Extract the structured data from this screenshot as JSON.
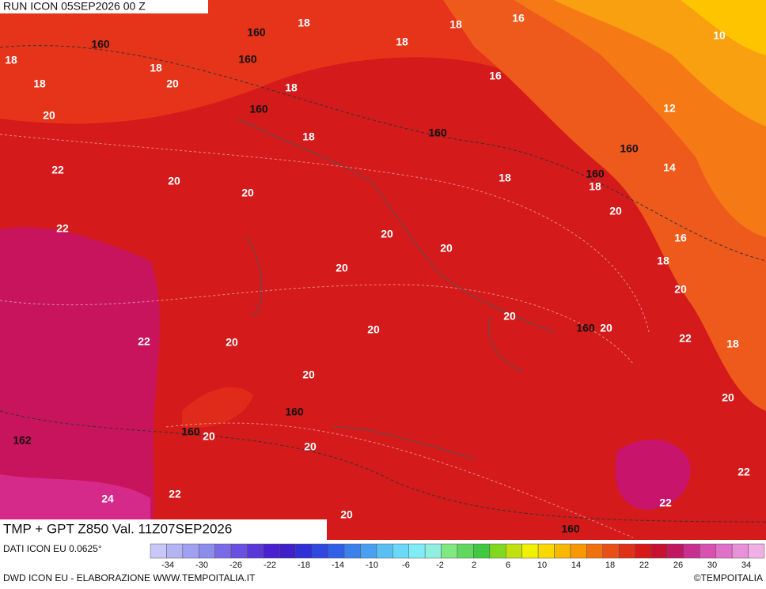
{
  "header": {
    "run": "RUN ICON 05SEP2026 00 Z",
    "product": "TMP + GPT Z850 Val. 11Z07SEP2026"
  },
  "map": {
    "contour_labels": [
      160,
      160,
      160,
      18,
      18,
      18,
      16,
      10,
      18,
      18,
      18,
      20,
      18,
      16,
      20,
      160,
      12,
      18,
      160,
      160,
      22,
      14,
      20,
      160,
      18,
      18,
      20,
      20,
      22,
      20,
      16,
      20,
      18,
      20,
      20,
      20,
      20,
      160,
      20,
      22,
      20,
      22,
      18,
      20,
      20,
      160,
      160,
      20,
      162,
      20,
      22,
      24,
      22,
      22,
      20,
      160
    ]
  },
  "colorbar": {
    "ticks": [
      -34,
      -30,
      -26,
      -22,
      -18,
      -14,
      -10,
      -6,
      -2,
      2,
      6,
      10,
      14,
      18,
      22,
      26,
      30,
      34
    ]
  },
  "footer": {
    "source": "DATI ICON EU 0.0625°",
    "credit": "DWD ICON EU - ELABORAZIONE WWW.TEMPOITALIA.IT",
    "copyright": "©TEMPOITALIA"
  }
}
